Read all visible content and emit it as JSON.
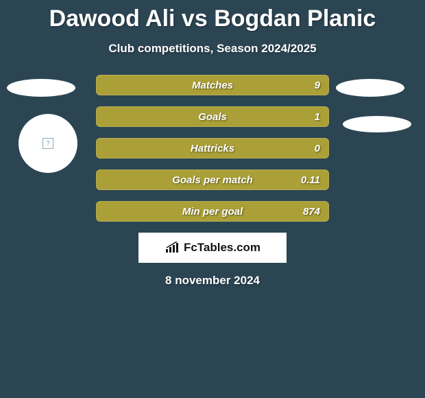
{
  "title": "Dawood Ali vs Bogdan Planic",
  "subtitle": "Club competitions, Season 2024/2025",
  "date": "8 november 2024",
  "branding": "FcTables.com",
  "background_color": "#2b4553",
  "ellipse_color": "#ffffff",
  "disc_color": "#ffffff",
  "disc_glyph": "?",
  "bars": [
    {
      "label": "Matches",
      "value": "9",
      "fill": "#aba037",
      "width_pct": 100
    },
    {
      "label": "Goals",
      "value": "1",
      "fill": "#aba037",
      "width_pct": 100
    },
    {
      "label": "Hattricks",
      "value": "0",
      "fill": "#aba037",
      "width_pct": 100
    },
    {
      "label": "Goals per match",
      "value": "0.11",
      "fill": "#aba037",
      "width_pct": 100
    },
    {
      "label": "Min per goal",
      "value": "874",
      "fill": "#aba037",
      "width_pct": 100
    }
  ],
  "typography": {
    "title_fontsize": 34,
    "subtitle_fontsize": 17,
    "bar_label_fontsize": 15,
    "date_fontsize": 17
  }
}
